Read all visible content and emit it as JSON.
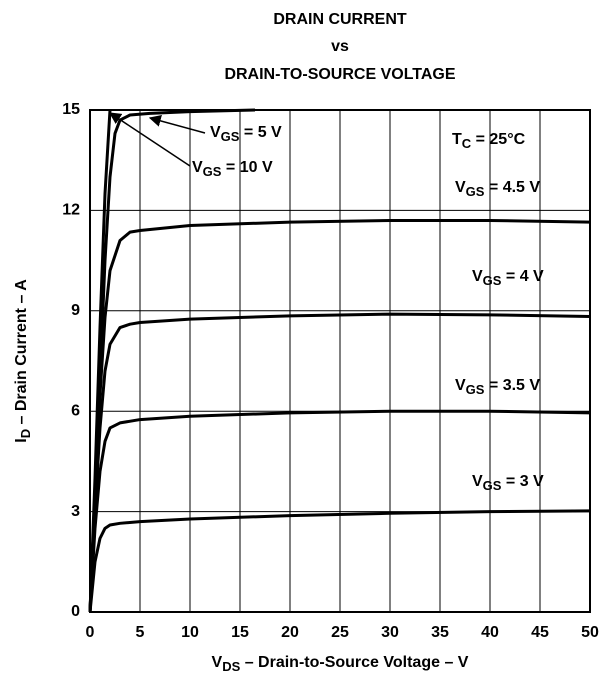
{
  "chart_data": {
    "type": "line",
    "title": [
      "DRAIN CURRENT",
      "vs",
      "DRAIN-TO-SOURCE VOLTAGE"
    ],
    "x_label": "VDS – Drain-to-Source Voltage – V",
    "y_label": "ID – Drain Current – A",
    "annotations": [
      "TC = 25°C"
    ],
    "xlim": [
      0,
      50
    ],
    "xticks": [
      0,
      5,
      10,
      15,
      20,
      25,
      30,
      35,
      40,
      45,
      50
    ],
    "ylim": [
      0,
      15
    ],
    "yticks": [
      0,
      3,
      6,
      9,
      12,
      15
    ],
    "grid": true,
    "series": [
      {
        "name": "VGS = 3 V",
        "color": "#000000",
        "x": [
          0,
          0.5,
          1,
          1.5,
          2,
          3,
          5,
          10,
          20,
          30,
          40,
          50
        ],
        "values": [
          0,
          1.5,
          2.2,
          2.5,
          2.6,
          2.65,
          2.7,
          2.78,
          2.88,
          2.95,
          3.0,
          3.02
        ]
      },
      {
        "name": "VGS = 3.5 V",
        "color": "#000000",
        "x": [
          0,
          0.5,
          1,
          1.5,
          2,
          3,
          5,
          10,
          20,
          30,
          40,
          50
        ],
        "values": [
          0,
          2.5,
          4.2,
          5.1,
          5.5,
          5.65,
          5.75,
          5.85,
          5.95,
          6.0,
          6.0,
          5.95
        ]
      },
      {
        "name": "VGS = 4 V",
        "color": "#000000",
        "x": [
          0,
          0.5,
          1,
          1.5,
          2,
          3,
          4,
          5,
          10,
          20,
          30,
          40,
          50
        ],
        "values": [
          0,
          3,
          5.5,
          7.2,
          8.0,
          8.5,
          8.6,
          8.65,
          8.75,
          8.85,
          8.9,
          8.88,
          8.83
        ]
      },
      {
        "name": "VGS = 4.5 V",
        "color": "#000000",
        "x": [
          0,
          0.5,
          1,
          1.5,
          2,
          3,
          4,
          5,
          10,
          20,
          30,
          40,
          50
        ],
        "values": [
          0,
          3.5,
          6.5,
          8.8,
          10.2,
          11.1,
          11.35,
          11.4,
          11.55,
          11.65,
          11.7,
          11.7,
          11.65
        ]
      },
      {
        "name": "VGS = 5 V",
        "color": "#000000",
        "x": [
          0,
          1,
          1.5,
          2,
          2.5,
          3,
          4,
          6,
          10,
          16.5
        ],
        "values": [
          0,
          7,
          10.5,
          13,
          14.3,
          14.7,
          14.85,
          14.9,
          14.95,
          15
        ]
      },
      {
        "name": "VGS = 10 V",
        "color": "#000000",
        "x": [
          0,
          0.5,
          1,
          1.5,
          2
        ],
        "values": [
          0,
          4,
          8.5,
          12.5,
          15
        ]
      }
    ]
  }
}
